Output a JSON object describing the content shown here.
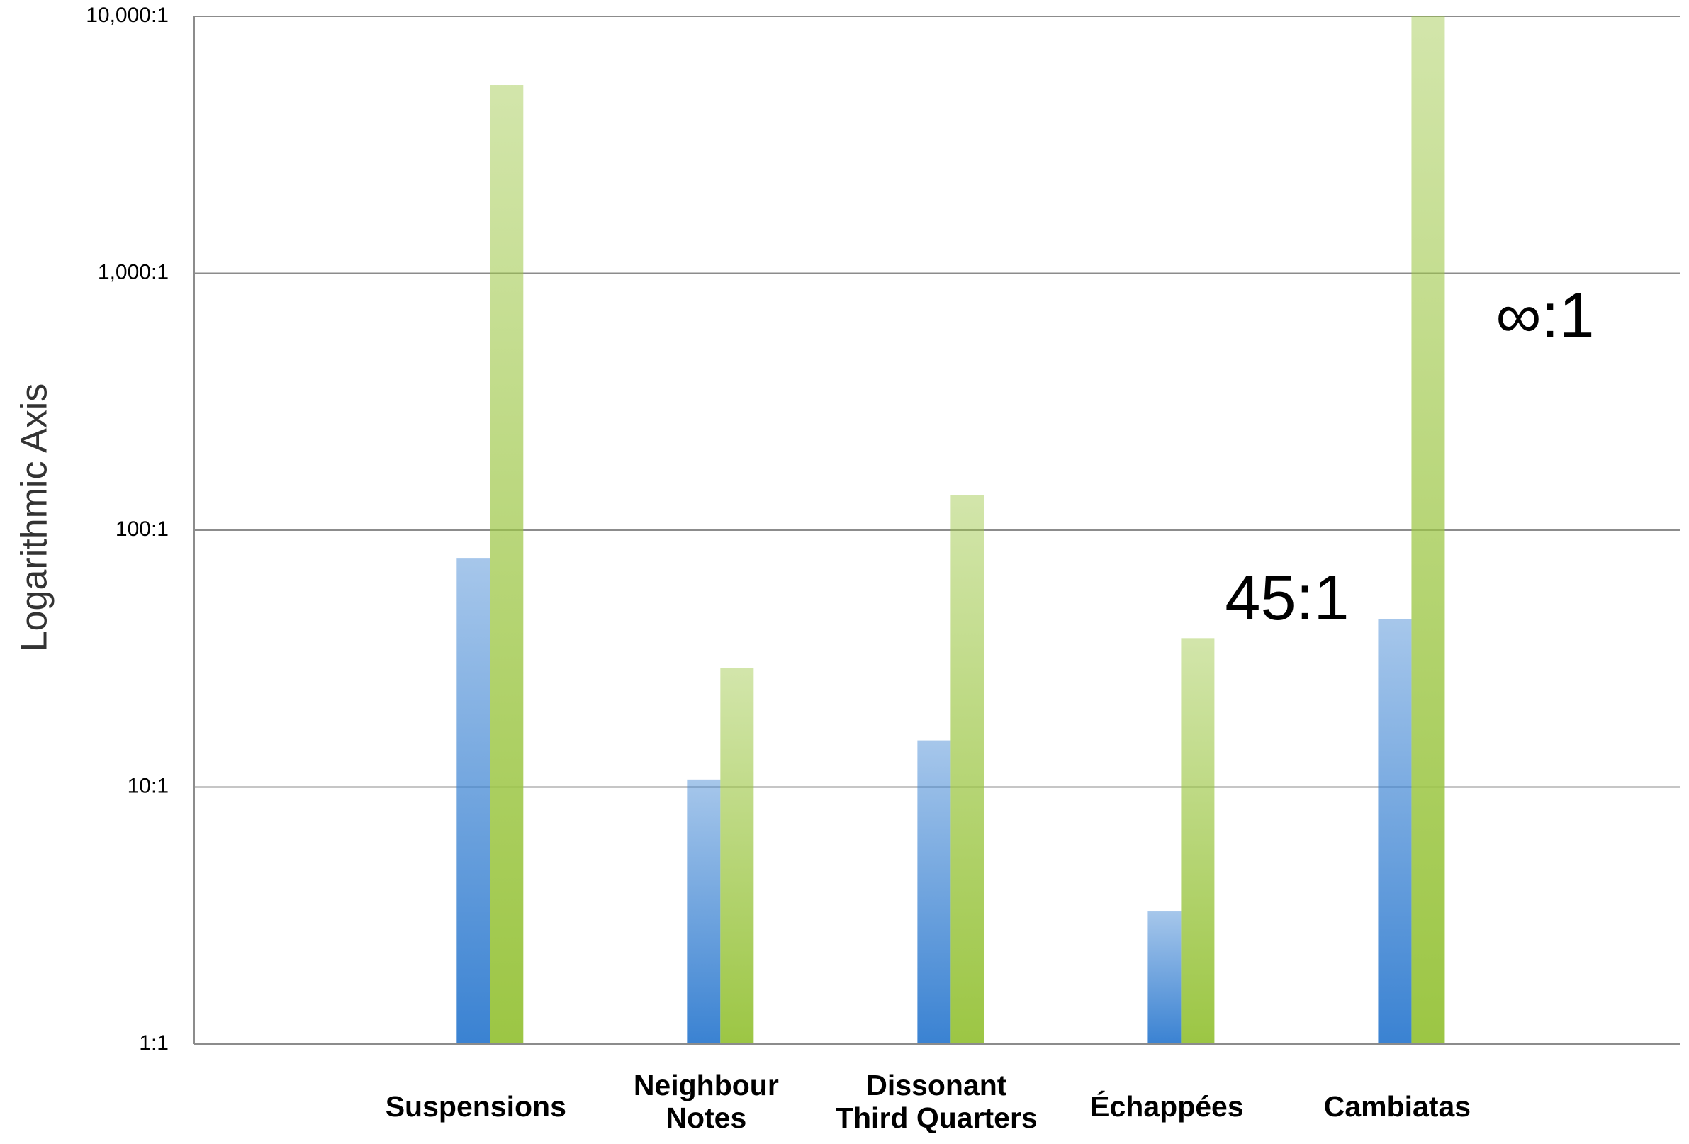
{
  "chart_data": {
    "type": "bar",
    "y_label": "Logarithmic Axis",
    "log_scale": true,
    "grid": true,
    "categories": [
      "Suspensions",
      "Neighbour\nNotes",
      "Dissonant\nThird Quarters",
      "Échappées",
      "Cambiatas"
    ],
    "series": [
      {
        "color": "#3a82d2",
        "values": [
          78,
          10.7,
          15.2,
          3.3,
          45
        ]
      },
      {
        "color": "#9cc644",
        "values": [
          5400,
          29,
          137,
          38,
          10000
        ]
      }
    ],
    "ylim": [
      1,
      10000
    ],
    "yticks": [
      {
        "value": 1,
        "label": "1:1"
      },
      {
        "value": 10,
        "label": "10:1"
      },
      {
        "value": 100,
        "label": "100:1"
      },
      {
        "value": 1000,
        "label": "1,000:1"
      },
      {
        "value": 10000,
        "label": "10,000:1"
      }
    ],
    "annotations": [
      "45:1",
      "∞:1"
    ]
  }
}
